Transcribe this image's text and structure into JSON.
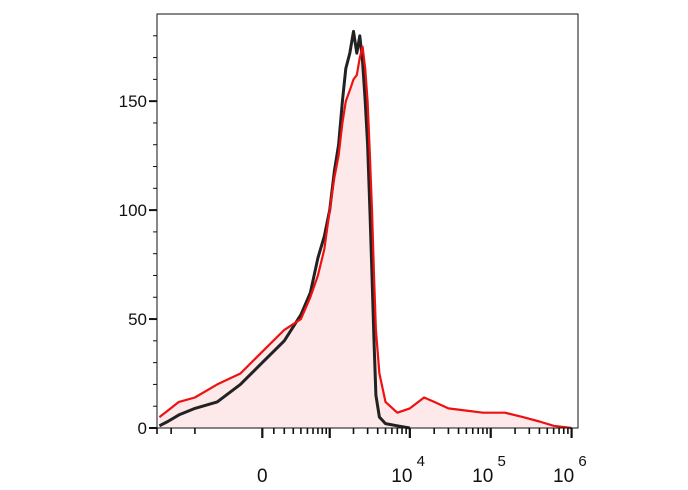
{
  "chart_data": {
    "type": "area",
    "title": "",
    "xlabel": "",
    "ylabel": "",
    "x_scale": "biexponential",
    "grid": false,
    "legend": "none",
    "xlim": [
      -3000,
      1200000
    ],
    "ylim": [
      0,
      190
    ],
    "y_ticks": [
      {
        "value": 0,
        "label": "0"
      },
      {
        "value": 50,
        "label": "50"
      },
      {
        "value": 100,
        "label": "100"
      },
      {
        "value": 150,
        "label": "150"
      }
    ],
    "x_ticks": [
      {
        "value": 0,
        "label": "0",
        "sup": ""
      },
      {
        "value": 10000,
        "label": "10",
        "sup": "4"
      },
      {
        "value": 100000,
        "label": "10",
        "sup": "5"
      },
      {
        "value": 1000000,
        "label": "10",
        "sup": "6"
      }
    ],
    "series": [
      {
        "role": "control",
        "color": "#222222",
        "fill": "none",
        "points": [
          [
            -2800,
            1
          ],
          [
            -2200,
            3
          ],
          [
            -1600,
            6
          ],
          [
            -1000,
            9
          ],
          [
            -500,
            12
          ],
          [
            -200,
            20
          ],
          [
            0,
            30
          ],
          [
            200,
            40
          ],
          [
            400,
            52
          ],
          [
            550,
            62
          ],
          [
            700,
            78
          ],
          [
            850,
            88
          ],
          [
            1000,
            100
          ],
          [
            1150,
            118
          ],
          [
            1300,
            130
          ],
          [
            1450,
            150
          ],
          [
            1600,
            165
          ],
          [
            1800,
            172
          ],
          [
            2000,
            182
          ],
          [
            2200,
            172
          ],
          [
            2400,
            180
          ],
          [
            2600,
            168
          ],
          [
            2800,
            150
          ],
          [
            3000,
            130
          ],
          [
            3200,
            100
          ],
          [
            3400,
            70
          ],
          [
            3600,
            40
          ],
          [
            3800,
            15
          ],
          [
            4200,
            5
          ],
          [
            5000,
            2
          ],
          [
            7000,
            1
          ],
          [
            10000,
            0
          ]
        ]
      },
      {
        "role": "sample",
        "color": "#ee1111",
        "fill": "#fde9ea",
        "points": [
          [
            -2800,
            5
          ],
          [
            -2200,
            8
          ],
          [
            -1600,
            12
          ],
          [
            -1000,
            14
          ],
          [
            -500,
            20
          ],
          [
            -200,
            25
          ],
          [
            0,
            35
          ],
          [
            200,
            45
          ],
          [
            400,
            50
          ],
          [
            550,
            60
          ],
          [
            700,
            70
          ],
          [
            850,
            82
          ],
          [
            1000,
            100
          ],
          [
            1150,
            115
          ],
          [
            1300,
            125
          ],
          [
            1450,
            140
          ],
          [
            1600,
            150
          ],
          [
            1800,
            155
          ],
          [
            2000,
            160
          ],
          [
            2200,
            162
          ],
          [
            2400,
            170
          ],
          [
            2600,
            175
          ],
          [
            2800,
            165
          ],
          [
            3000,
            150
          ],
          [
            3200,
            125
          ],
          [
            3400,
            100
          ],
          [
            3600,
            70
          ],
          [
            3800,
            45
          ],
          [
            4200,
            25
          ],
          [
            5000,
            12
          ],
          [
            7000,
            7
          ],
          [
            10000,
            9
          ],
          [
            15000,
            14
          ],
          [
            20000,
            12
          ],
          [
            30000,
            9
          ],
          [
            50000,
            8
          ],
          [
            80000,
            7
          ],
          [
            150000,
            7
          ],
          [
            250000,
            5
          ],
          [
            400000,
            3
          ],
          [
            600000,
            1
          ],
          [
            1000000,
            0
          ]
        ]
      }
    ]
  }
}
